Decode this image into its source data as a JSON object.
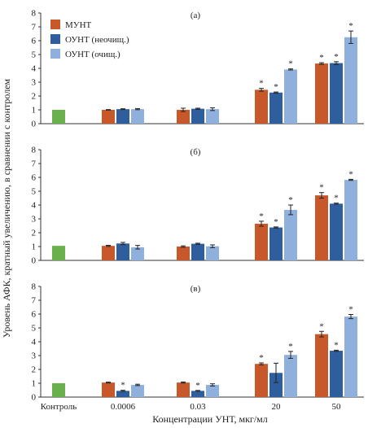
{
  "chart_data": {
    "type": "bar",
    "categories": [
      "Контроль",
      "0.0006",
      "0.03",
      "20",
      "50"
    ],
    "xlabel": "Концентрации УНТ, мкг/мл",
    "ylabel": "Уровень АФК, кратный увеличению, в сравнении с контролем",
    "ylim": [
      0,
      8
    ],
    "yticks": [
      "0",
      "1",
      "2",
      "3",
      "4",
      "5",
      "6",
      "7",
      "8"
    ],
    "legend_position": "top-left",
    "colors": {
      "control": "#6ab04c",
      "series": [
        "#c8582a",
        "#2e5e9e",
        "#8fb0dc"
      ]
    },
    "series_names": [
      "МУНТ",
      "ОУНТ (неочищ.)",
      "ОУНТ (очищ.)"
    ],
    "panels": [
      {
        "tag": "(а)",
        "control": 1.0,
        "series": [
          {
            "name": "МУНТ",
            "values": [
              1.0,
              1.0,
              2.45,
              4.35
            ],
            "errors": [
              0.02,
              0.12,
              0.1,
              0.06
            ],
            "stars": [
              false,
              false,
              true,
              true
            ]
          },
          {
            "name": "ОУНТ (неочищ.)",
            "values": [
              1.05,
              1.08,
              2.25,
              4.38
            ],
            "errors": [
              0.03,
              0.04,
              0.04,
              0.1
            ],
            "stars": [
              false,
              false,
              true,
              true
            ]
          },
          {
            "name": "ОУНТ (очищ.)",
            "values": [
              1.05,
              1.05,
              3.92,
              6.25
            ],
            "errors": [
              0.04,
              0.1,
              0.04,
              0.45
            ],
            "stars": [
              false,
              false,
              true,
              true
            ]
          }
        ]
      },
      {
        "tag": "(б)",
        "control": 1.05,
        "series": [
          {
            "name": "МУНТ",
            "values": [
              1.05,
              1.0,
              2.65,
              4.7
            ],
            "errors": [
              0.04,
              0.05,
              0.18,
              0.2
            ],
            "stars": [
              false,
              false,
              true,
              true
            ]
          },
          {
            "name": "ОУНТ (неочищ.)",
            "values": [
              1.22,
              1.2,
              2.38,
              4.1
            ],
            "errors": [
              0.08,
              0.04,
              0.04,
              0.04
            ],
            "stars": [
              false,
              false,
              true,
              true
            ]
          },
          {
            "name": "ОУНТ (очищ.)",
            "values": [
              0.95,
              1.02,
              3.65,
              5.82
            ],
            "errors": [
              0.13,
              0.1,
              0.35,
              0.04
            ],
            "stars": [
              false,
              false,
              true,
              true
            ]
          }
        ]
      },
      {
        "tag": "(в)",
        "control": 1.0,
        "series": [
          {
            "name": "МУНТ",
            "values": [
              1.05,
              1.05,
              2.4,
              4.55
            ],
            "errors": [
              0.03,
              0.04,
              0.07,
              0.2
            ],
            "stars": [
              false,
              false,
              true,
              true
            ]
          },
          {
            "name": "ОУНТ (неочищ.)",
            "values": [
              0.45,
              0.45,
              1.75,
              3.35
            ],
            "errors": [
              0.04,
              0.03,
              0.7,
              0.04
            ],
            "stars": [
              true,
              true,
              false,
              true
            ]
          },
          {
            "name": "ОУНТ (очищ.)",
            "values": [
              0.88,
              0.88,
              3.05,
              5.82
            ],
            "errors": [
              0.05,
              0.08,
              0.25,
              0.15
            ],
            "stars": [
              false,
              false,
              true,
              true
            ]
          }
        ]
      }
    ]
  }
}
